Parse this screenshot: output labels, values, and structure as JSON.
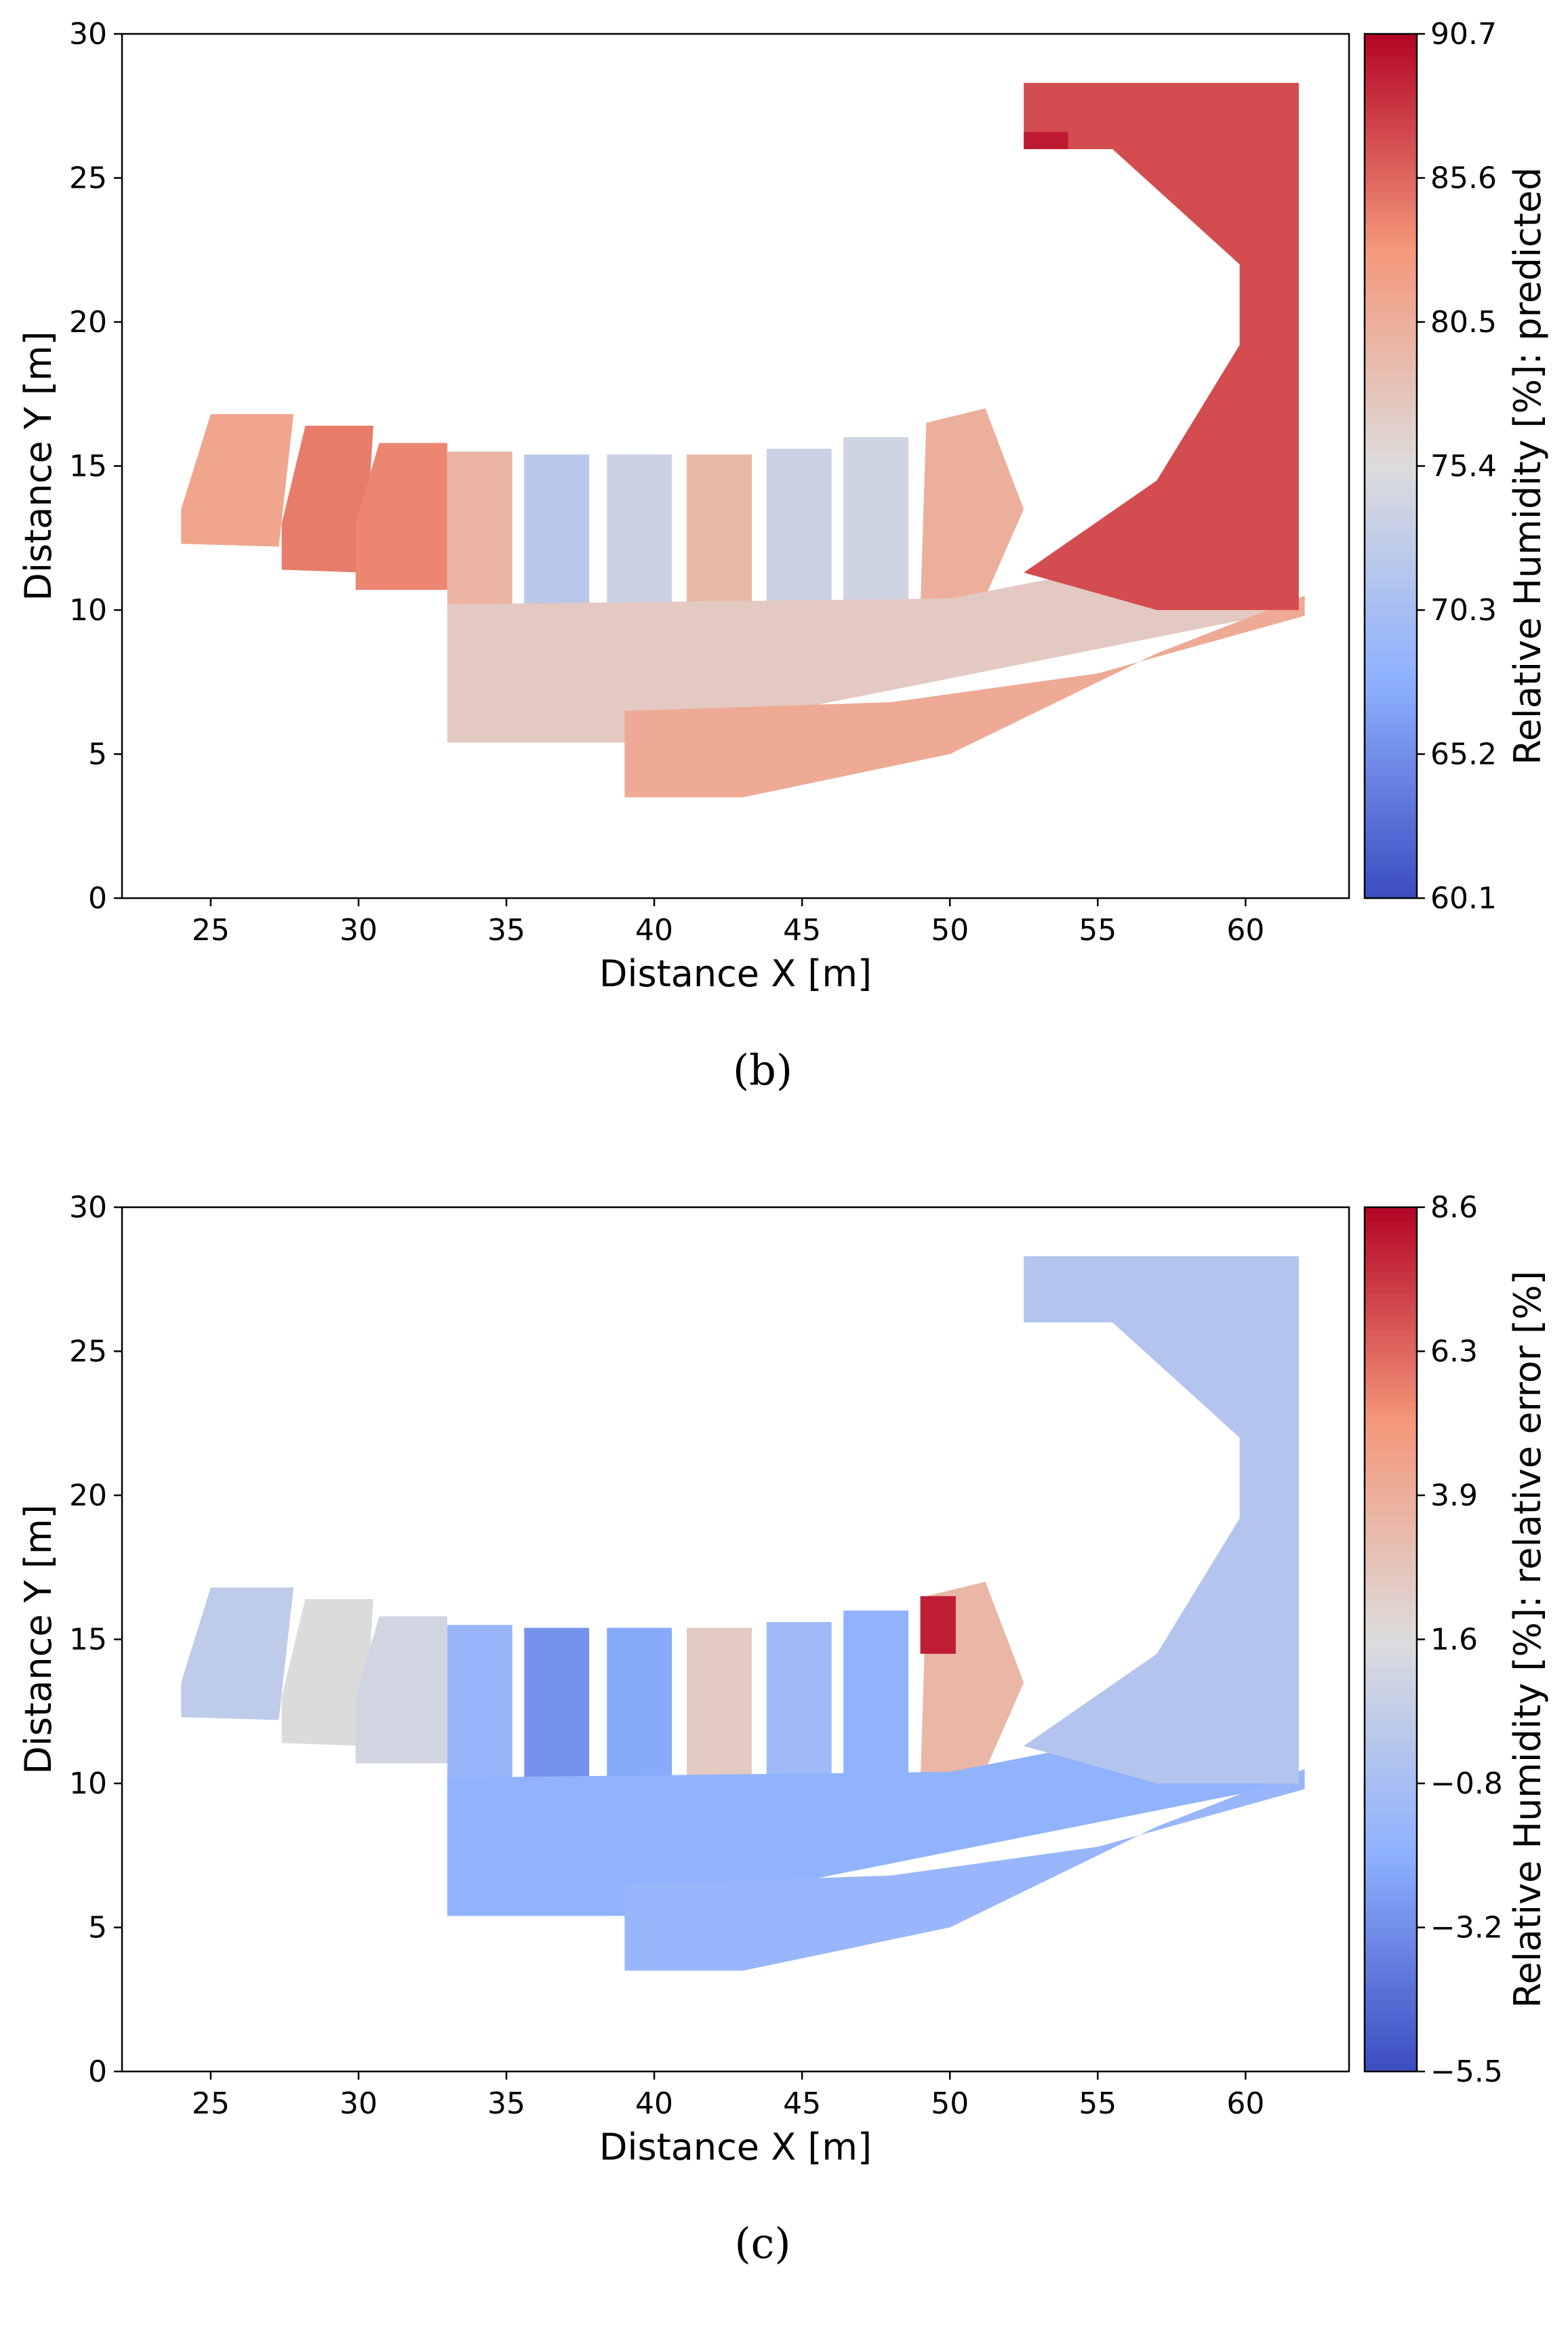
{
  "chart_data": [
    {
      "type": "heatmap",
      "panel": "b",
      "caption": "(b)",
      "xlabel": "Distance X [m]",
      "ylabel": "Distance Y [m]",
      "xlim": [
        22,
        63.5
      ],
      "ylim": [
        0,
        30
      ],
      "x_ticks": [
        25,
        30,
        35,
        40,
        45,
        50,
        55,
        60
      ],
      "y_ticks": [
        0,
        5,
        10,
        15,
        20,
        25,
        30
      ],
      "colorbar": {
        "label": "Relative Humidity [%]: predicted",
        "colormap": "coolwarm",
        "min": 60.1,
        "max": 90.7,
        "ticks": [
          "60.1",
          "65.2",
          "70.3",
          "75.4",
          "80.5",
          "85.6",
          "90.7"
        ]
      },
      "regions": [
        {
          "polygon": [
            [
              24,
              12.3
            ],
            [
              24,
              13.5
            ],
            [
              25,
              16.8
            ],
            [
              27.8,
              16.8
            ],
            [
              27.3,
              12.2
            ]
          ],
          "value": 81.6
        },
        {
          "polygon": [
            [
              27.4,
              11.4
            ],
            [
              27.4,
              13
            ],
            [
              28.2,
              16.4
            ],
            [
              30.5,
              16.4
            ],
            [
              30.2,
              11.3
            ]
          ],
          "value": 84.5
        },
        {
          "polygon": [
            [
              29.9,
              10.7
            ],
            [
              29.9,
              13
            ],
            [
              30.7,
              15.8
            ],
            [
              33,
              15.8
            ],
            [
              33,
              10.7
            ]
          ],
          "value": 84.0
        },
        {
          "polygon": [
            [
              33,
              10
            ],
            [
              33,
              15.5
            ],
            [
              35.2,
              15.5
            ],
            [
              35.2,
              10
            ]
          ],
          "value": 80.0
        },
        {
          "polygon": [
            [
              35.6,
              10
            ],
            [
              35.6,
              15.4
            ],
            [
              37.8,
              15.4
            ],
            [
              37.8,
              10
            ]
          ],
          "value": 72.0
        },
        {
          "polygon": [
            [
              38.4,
              10
            ],
            [
              38.4,
              15.4
            ],
            [
              40.6,
              15.4
            ],
            [
              40.6,
              10
            ]
          ],
          "value": 73.5
        },
        {
          "polygon": [
            [
              41.1,
              10
            ],
            [
              41.1,
              15.4
            ],
            [
              43.3,
              15.4
            ],
            [
              43.3,
              10
            ]
          ],
          "value": 79.5
        },
        {
          "polygon": [
            [
              43.8,
              10
            ],
            [
              43.8,
              15.6
            ],
            [
              46,
              15.6
            ],
            [
              46,
              10
            ]
          ],
          "value": 73.5
        },
        {
          "polygon": [
            [
              46.4,
              10
            ],
            [
              46.4,
              16
            ],
            [
              48.6,
              16
            ],
            [
              48.6,
              10
            ]
          ],
          "value": 74.0
        },
        {
          "polygon": [
            [
              49,
              10
            ],
            [
              49.2,
              16.5
            ],
            [
              51.2,
              17
            ],
            [
              52.5,
              13.5
            ],
            [
              51,
              10
            ]
          ],
          "value": 80.5
        },
        {
          "polygon": [
            [
              33,
              5.4
            ],
            [
              33,
              10.2
            ],
            [
              50,
              10.4
            ],
            [
              56,
              11.6
            ],
            [
              61.6,
              10
            ],
            [
              43.5,
              6.3
            ],
            [
              39.5,
              5.4
            ]
          ],
          "value": 77.5
        },
        {
          "polygon": [
            [
              39,
              3.5
            ],
            [
              39,
              6.5
            ],
            [
              48,
              6.8
            ],
            [
              55,
              7.8
            ],
            [
              62,
              9.8
            ],
            [
              62,
              10.5
            ],
            [
              57,
              8.5
            ],
            [
              50,
              5
            ],
            [
              43,
              3.5
            ]
          ],
          "value": 81.0
        },
        {
          "polygon": [
            [
              52.5,
              11.3
            ],
            [
              57,
              14.5
            ],
            [
              59.8,
              19.2
            ],
            [
              59.8,
              22
            ],
            [
              55.5,
              26
            ],
            [
              52.5,
              26
            ],
            [
              52.5,
              28.3
            ],
            [
              61.8,
              28.3
            ],
            [
              61.8,
              10
            ],
            [
              57,
              10
            ]
          ],
          "value": 87.0
        },
        {
          "polygon": [
            [
              52.5,
              26
            ],
            [
              52.5,
              26.6
            ],
            [
              54,
              26.6
            ],
            [
              54,
              26
            ]
          ],
          "value": 89.5
        }
      ]
    },
    {
      "type": "heatmap",
      "panel": "c",
      "caption": "(c)",
      "xlabel": "Distance X [m]",
      "ylabel": "Distance Y [m]",
      "xlim": [
        22,
        63.5
      ],
      "ylim": [
        0,
        30
      ],
      "x_ticks": [
        25,
        30,
        35,
        40,
        45,
        50,
        55,
        60
      ],
      "y_ticks": [
        0,
        5,
        10,
        15,
        20,
        25,
        30
      ],
      "colorbar": {
        "label": "Relative Humidity [%]: relative error [%]",
        "colormap": "coolwarm",
        "min": -5.5,
        "max": 8.6,
        "ticks": [
          "−5.5",
          "−3.2",
          "−0.8",
          "1.6",
          "3.9",
          "6.3",
          "8.6"
        ]
      },
      "regions": [
        {
          "polygon": [
            [
              24,
              12.3
            ],
            [
              24,
              13.5
            ],
            [
              25,
              16.8
            ],
            [
              27.8,
              16.8
            ],
            [
              27.3,
              12.2
            ]
          ],
          "value": 0.2
        },
        {
          "polygon": [
            [
              27.4,
              11.4
            ],
            [
              27.4,
              13
            ],
            [
              28.2,
              16.4
            ],
            [
              30.5,
              16.4
            ],
            [
              30.2,
              11.3
            ]
          ],
          "value": 1.5
        },
        {
          "polygon": [
            [
              29.9,
              10.7
            ],
            [
              29.9,
              13
            ],
            [
              30.7,
              15.8
            ],
            [
              33,
              15.8
            ],
            [
              33,
              10.7
            ]
          ],
          "value": 1.0
        },
        {
          "polygon": [
            [
              33,
              10
            ],
            [
              33,
              15.5
            ],
            [
              35.2,
              15.5
            ],
            [
              35.2,
              10
            ]
          ],
          "value": -1.5
        },
        {
          "polygon": [
            [
              35.6,
              10
            ],
            [
              35.6,
              15.4
            ],
            [
              37.8,
              15.4
            ],
            [
              37.8,
              10
            ]
          ],
          "value": -3.0
        },
        {
          "polygon": [
            [
              38.4,
              10
            ],
            [
              38.4,
              15.4
            ],
            [
              40.6,
              15.4
            ],
            [
              40.6,
              10
            ]
          ],
          "value": -2.2
        },
        {
          "polygon": [
            [
              41.1,
              10
            ],
            [
              41.1,
              15.4
            ],
            [
              43.3,
              15.4
            ],
            [
              43.3,
              10
            ]
          ],
          "value": 2.5
        },
        {
          "polygon": [
            [
              43.8,
              10
            ],
            [
              43.8,
              15.6
            ],
            [
              46,
              15.6
            ],
            [
              46,
              10
            ]
          ],
          "value": -1.2
        },
        {
          "polygon": [
            [
              46.4,
              10
            ],
            [
              46.4,
              16
            ],
            [
              48.6,
              16
            ],
            [
              48.6,
              10
            ]
          ],
          "value": -1.8
        },
        {
          "polygon": [
            [
              49,
              10
            ],
            [
              49.2,
              16.5
            ],
            [
              51.2,
              17
            ],
            [
              52.5,
              13.5
            ],
            [
              51,
              10
            ]
          ],
          "value": 3.5
        },
        {
          "polygon": [
            [
              33,
              5.4
            ],
            [
              33,
              10.2
            ],
            [
              50,
              10.4
            ],
            [
              56,
              11.6
            ],
            [
              61.6,
              10
            ],
            [
              43.5,
              6.3
            ],
            [
              39.5,
              5.4
            ]
          ],
          "value": -1.8
        },
        {
          "polygon": [
            [
              39,
              3.5
            ],
            [
              39,
              6.5
            ],
            [
              48,
              6.8
            ],
            [
              55,
              7.8
            ],
            [
              62,
              9.8
            ],
            [
              62,
              10.5
            ],
            [
              57,
              8.5
            ],
            [
              50,
              5
            ],
            [
              43,
              3.5
            ]
          ],
          "value": -1.5
        },
        {
          "polygon": [
            [
              52.5,
              11.3
            ],
            [
              57,
              14.5
            ],
            [
              59.8,
              19.2
            ],
            [
              59.8,
              22
            ],
            [
              55.5,
              26
            ],
            [
              52.5,
              26
            ],
            [
              52.5,
              28.3
            ],
            [
              61.8,
              28.3
            ],
            [
              61.8,
              10
            ],
            [
              57,
              10
            ]
          ],
          "value": -0.3
        },
        {
          "polygon": [
            [
              49,
              14.5
            ],
            [
              49,
              16.5
            ],
            [
              50.2,
              16.5
            ],
            [
              50.2,
              14.5
            ]
          ],
          "value": 8.0
        }
      ]
    }
  ]
}
